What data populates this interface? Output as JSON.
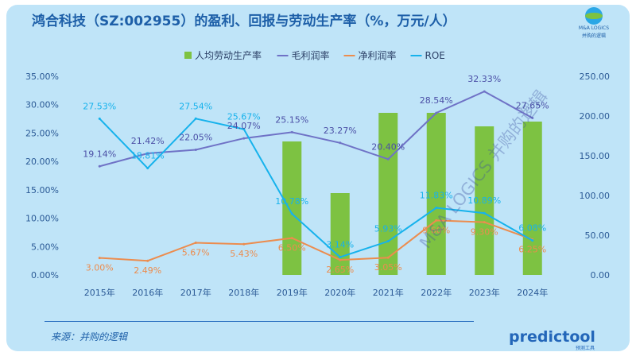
{
  "title": "鸿合科技（SZ:002955）的盈利、回报与劳动生产率（%，万元/人）",
  "logo": {
    "name": "M&A LOGICS",
    "sub": "并购的逻辑"
  },
  "source": "来源：并购的逻辑",
  "watermark": "M&A LOGICS 并购的逻辑",
  "brand": {
    "name": "predictool",
    "sub": "预测工具"
  },
  "colors": {
    "bar": "#7dc242",
    "gross": "#6f72c6",
    "net": "#ec8c4e",
    "roe": "#16b2ec",
    "axis_text": "#2b5a96",
    "label_gross": "#4b4fa6",
    "label_net": "#ec8c4e",
    "label_roe": "#16b2ec"
  },
  "chart_data": {
    "type": "bar",
    "categories": [
      "2015年",
      "2016年",
      "2017年",
      "2018年",
      "2019年",
      "2020年",
      "2021年",
      "2022年",
      "2023年",
      "2024年"
    ],
    "series": [
      {
        "name": "人均劳动生产率",
        "type": "bar",
        "axis": "right",
        "values": [
          null,
          null,
          null,
          null,
          168,
          103,
          204,
          204,
          187,
          193
        ],
        "labels": []
      },
      {
        "name": "毛利润率",
        "type": "line",
        "axis": "left",
        "values": [
          19.14,
          21.42,
          22.05,
          24.07,
          25.15,
          23.27,
          20.4,
          28.54,
          32.33,
          27.65
        ],
        "labels": [
          "19.14%",
          "21.42%",
          "22.05%",
          "24.07%",
          "25.15%",
          "23.27%",
          "20.40%",
          "28.54%",
          "32.33%",
          "27.65%"
        ]
      },
      {
        "name": "净利润率",
        "type": "line",
        "axis": "left",
        "values": [
          3.0,
          2.49,
          5.67,
          5.43,
          6.5,
          2.65,
          3.05,
          9.6,
          9.3,
          6.25
        ],
        "labels": [
          "3.00%",
          "2.49%",
          "5.67%",
          "5.43%",
          "6.50%",
          "2.65%",
          "3.05%",
          "9.60%",
          "9.30%",
          "6.25%"
        ]
      },
      {
        "name": "ROE",
        "type": "line",
        "axis": "left",
        "values": [
          27.53,
          18.81,
          27.54,
          25.67,
          10.78,
          3.14,
          5.93,
          11.83,
          10.89,
          6.08
        ],
        "labels": [
          "27.53%",
          "18.81%",
          "27.54%",
          "25.67%",
          "10.78%",
          "3.14%",
          "5.93%",
          "11.83%",
          "10.89%",
          "6.08%"
        ]
      }
    ],
    "y_left": {
      "min": 0,
      "max": 35,
      "ticks": [
        "0.00%",
        "5.00%",
        "10.00%",
        "15.00%",
        "20.00%",
        "25.00%",
        "30.00%",
        "35.00%"
      ]
    },
    "y_right": {
      "min": 0,
      "max": 250,
      "ticks": [
        "0.00",
        "50.00",
        "100.00",
        "150.00",
        "200.00",
        "250.00"
      ]
    },
    "grid": false,
    "legend": "top-center"
  }
}
